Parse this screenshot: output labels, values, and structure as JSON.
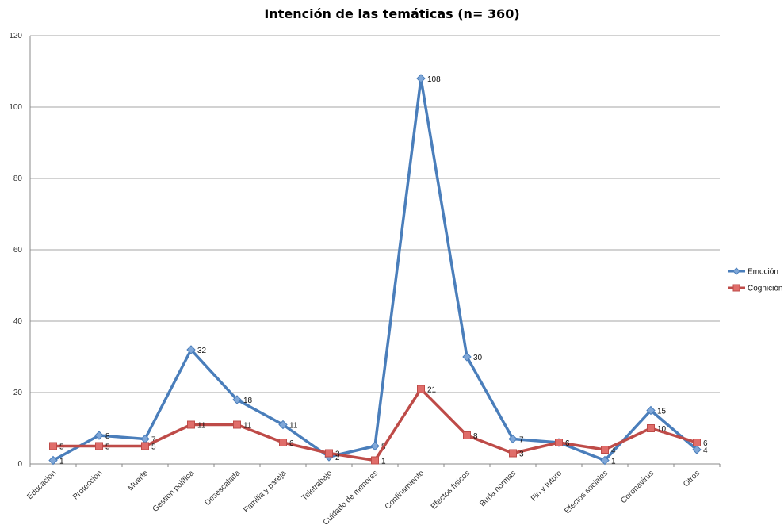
{
  "chart_data": {
    "type": "line",
    "title": "Intención de las temáticas (n= 360)",
    "xlabel": "",
    "ylabel": "",
    "ylim": [
      0,
      120
    ],
    "yticks": [
      0,
      20,
      40,
      60,
      80,
      100,
      120
    ],
    "grid": true,
    "legend_position": "right",
    "categories": [
      "Educación",
      "Protección",
      "Muerte",
      "Gestion política",
      "Desescalada",
      "Familia y pareja",
      "Teletrabajo",
      "Cuidado de menores",
      "Confinamiento",
      "Efectos físicos",
      "Burla normas",
      "Fin y futuro",
      "Efectos sociales",
      "Coronavirus",
      "Otros"
    ],
    "series": [
      {
        "name": "Emoción",
        "color": "#4a7ebb",
        "marker": "diamond",
        "values": [
          1,
          8,
          7,
          32,
          18,
          11,
          2,
          5,
          108,
          30,
          7,
          6,
          1,
          15,
          4
        ]
      },
      {
        "name": "Cognición",
        "color": "#be4b48",
        "marker": "square",
        "values": [
          5,
          5,
          5,
          11,
          11,
          6,
          3,
          1,
          21,
          8,
          3,
          6,
          4,
          10,
          6
        ]
      }
    ]
  }
}
